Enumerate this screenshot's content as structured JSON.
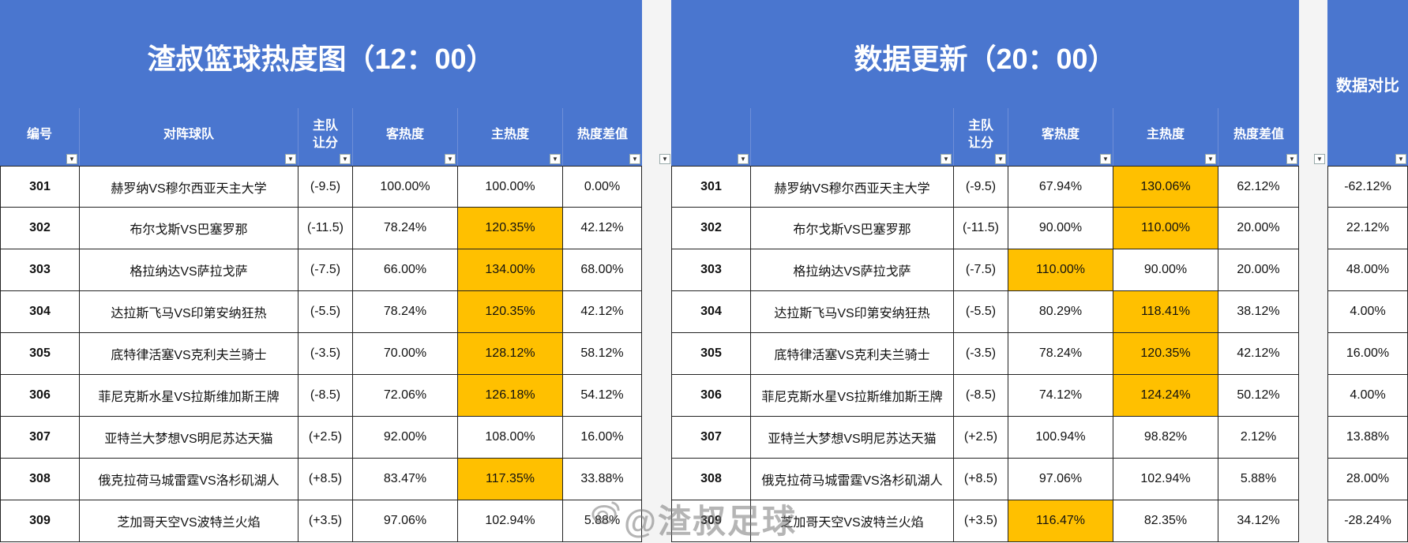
{
  "left": {
    "title": "渣叔篮球热度图（12：00）",
    "headers": [
      "编号",
      "对阵球队",
      "主队\n让分",
      "客热度",
      "主热度",
      "热度差值"
    ],
    "rows": [
      {
        "id": "301",
        "match": "赫罗纳VS穆尔西亚天主大学",
        "handicap": "(-9.5)",
        "away": "100.00%",
        "home": "100.00%",
        "diff": "0.00%",
        "hl": ""
      },
      {
        "id": "302",
        "match": "布尔戈斯VS巴塞罗那",
        "handicap": "(-11.5)",
        "away": "78.24%",
        "home": "120.35%",
        "diff": "42.12%",
        "hl": "home"
      },
      {
        "id": "303",
        "match": "格拉纳达VS萨拉戈萨",
        "handicap": "(-7.5)",
        "away": "66.00%",
        "home": "134.00%",
        "diff": "68.00%",
        "hl": "home"
      },
      {
        "id": "304",
        "match": "达拉斯飞马VS印第安纳狂热",
        "handicap": "(-5.5)",
        "away": "78.24%",
        "home": "120.35%",
        "diff": "42.12%",
        "hl": "home"
      },
      {
        "id": "305",
        "match": "底特律活塞VS克利夫兰骑士",
        "handicap": "(-3.5)",
        "away": "70.00%",
        "home": "128.12%",
        "diff": "58.12%",
        "hl": "home"
      },
      {
        "id": "306",
        "match": "菲尼克斯水星VS拉斯维加斯王牌",
        "handicap": "(-8.5)",
        "away": "72.06%",
        "home": "126.18%",
        "diff": "54.12%",
        "hl": "home"
      },
      {
        "id": "307",
        "match": "亚特兰大梦想VS明尼苏达天猫",
        "handicap": "(+2.5)",
        "away": "92.00%",
        "home": "108.00%",
        "diff": "16.00%",
        "hl": ""
      },
      {
        "id": "308",
        "match": "俄克拉荷马城雷霆VS洛杉矶湖人",
        "handicap": "(+8.5)",
        "away": "83.47%",
        "home": "117.35%",
        "diff": "33.88%",
        "hl": "home"
      },
      {
        "id": "309",
        "match": "芝加哥天空VS波特兰火焰",
        "handicap": "(+3.5)",
        "away": "97.06%",
        "home": "102.94%",
        "diff": "5.88%",
        "hl": ""
      }
    ]
  },
  "right": {
    "title": "数据更新（20：00）",
    "headers": [
      "",
      "",
      "主队\n让分",
      "客热度",
      "主热度",
      "热度差值"
    ],
    "rows": [
      {
        "id": "301",
        "match": "赫罗纳VS穆尔西亚天主大学",
        "handicap": "(-9.5)",
        "away": "67.94%",
        "home": "130.06%",
        "diff": "62.12%",
        "hl": "home"
      },
      {
        "id": "302",
        "match": "布尔戈斯VS巴塞罗那",
        "handicap": "(-11.5)",
        "away": "90.00%",
        "home": "110.00%",
        "diff": "20.00%",
        "hl": "home"
      },
      {
        "id": "303",
        "match": "格拉纳达VS萨拉戈萨",
        "handicap": "(-7.5)",
        "away": "110.00%",
        "home": "90.00%",
        "diff": "20.00%",
        "hl": "away"
      },
      {
        "id": "304",
        "match": "达拉斯飞马VS印第安纳狂热",
        "handicap": "(-5.5)",
        "away": "80.29%",
        "home": "118.41%",
        "diff": "38.12%",
        "hl": "home"
      },
      {
        "id": "305",
        "match": "底特律活塞VS克利夫兰骑士",
        "handicap": "(-3.5)",
        "away": "78.24%",
        "home": "120.35%",
        "diff": "42.12%",
        "hl": "home"
      },
      {
        "id": "306",
        "match": "菲尼克斯水星VS拉斯维加斯王牌",
        "handicap": "(-8.5)",
        "away": "74.12%",
        "home": "124.24%",
        "diff": "50.12%",
        "hl": "home"
      },
      {
        "id": "307",
        "match": "亚特兰大梦想VS明尼苏达天猫",
        "handicap": "(+2.5)",
        "away": "100.94%",
        "home": "98.82%",
        "diff": "2.12%",
        "hl": ""
      },
      {
        "id": "308",
        "match": "俄克拉荷马城雷霆VS洛杉矶湖人",
        "handicap": "(+8.5)",
        "away": "97.06%",
        "home": "102.94%",
        "diff": "5.88%",
        "hl": ""
      },
      {
        "id": "309",
        "match": "芝加哥天空VS波特兰火焰",
        "handicap": "(+3.5)",
        "away": "116.47%",
        "home": "82.35%",
        "diff": "34.12%",
        "hl": "away"
      }
    ]
  },
  "compare": {
    "title": "数据对比",
    "values": [
      "-62.12%",
      "22.12%",
      "48.00%",
      "4.00%",
      "16.00%",
      "4.00%",
      "13.88%",
      "28.00%",
      "-28.24%"
    ]
  },
  "watermark": "@渣叔足球",
  "colors": {
    "header": "#4a76cf",
    "highlight": "#ffc000"
  }
}
